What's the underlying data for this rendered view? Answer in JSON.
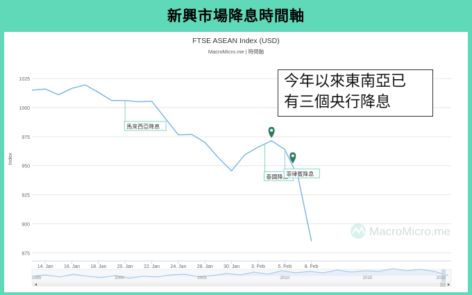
{
  "banner": {
    "title": "新興市場降息時間軸"
  },
  "chart_data": {
    "type": "line",
    "title": "FTSE ASEAN Index (USD)",
    "subtitle": "MacroMicro.me | 時間軸",
    "ylabel": "Index",
    "xlabel": "",
    "ylim": [
      868,
      1040
    ],
    "yticks": [
      875,
      900,
      925,
      950,
      975,
      1000,
      1025
    ],
    "xlim": [
      0,
      31.5
    ],
    "xticks": [
      {
        "pos": 1,
        "label": "14. Jan"
      },
      {
        "pos": 3,
        "label": "16. Jan"
      },
      {
        "pos": 5,
        "label": "18. Jan"
      },
      {
        "pos": 7,
        "label": "20. Jan"
      },
      {
        "pos": 9,
        "label": "22. Jan"
      },
      {
        "pos": 11,
        "label": "24. Jan"
      },
      {
        "pos": 13,
        "label": "28. Jan"
      },
      {
        "pos": 15,
        "label": "30. Jan"
      },
      {
        "pos": 17,
        "label": "3. Feb"
      },
      {
        "pos": 19,
        "label": "5. Feb"
      },
      {
        "pos": 21,
        "label": "8. Feb"
      }
    ],
    "series": [
      {
        "color": "#7db7e8",
        "x": [
          0,
          1,
          2,
          3,
          4,
          5,
          6,
          7,
          8,
          9,
          10,
          11,
          12,
          13,
          14,
          15,
          16,
          17,
          18,
          19,
          20,
          21
        ],
        "y": [
          1015,
          1016,
          1011,
          1016.5,
          1019.5,
          1013,
          1006,
          1006,
          1005,
          1005.5,
          991,
          976.5,
          977,
          970,
          957,
          945.5,
          959.5,
          966,
          971.5,
          964,
          940,
          885
        ]
      }
    ],
    "annotations": [
      {
        "label": "馬來西亞降息",
        "x": 7
      },
      {
        "label": "泰國降息",
        "x": 17.5
      },
      {
        "label": "菲律賓降息",
        "x": 19
      }
    ],
    "navigator": {
      "labels": [
        "1995",
        "2000",
        "2005",
        "2010",
        "2015",
        "2020"
      ]
    },
    "watermark": "MacroMicro.me"
  },
  "callout": {
    "line1": "今年以來東南亞已",
    "line2": "有三個央行降息"
  }
}
